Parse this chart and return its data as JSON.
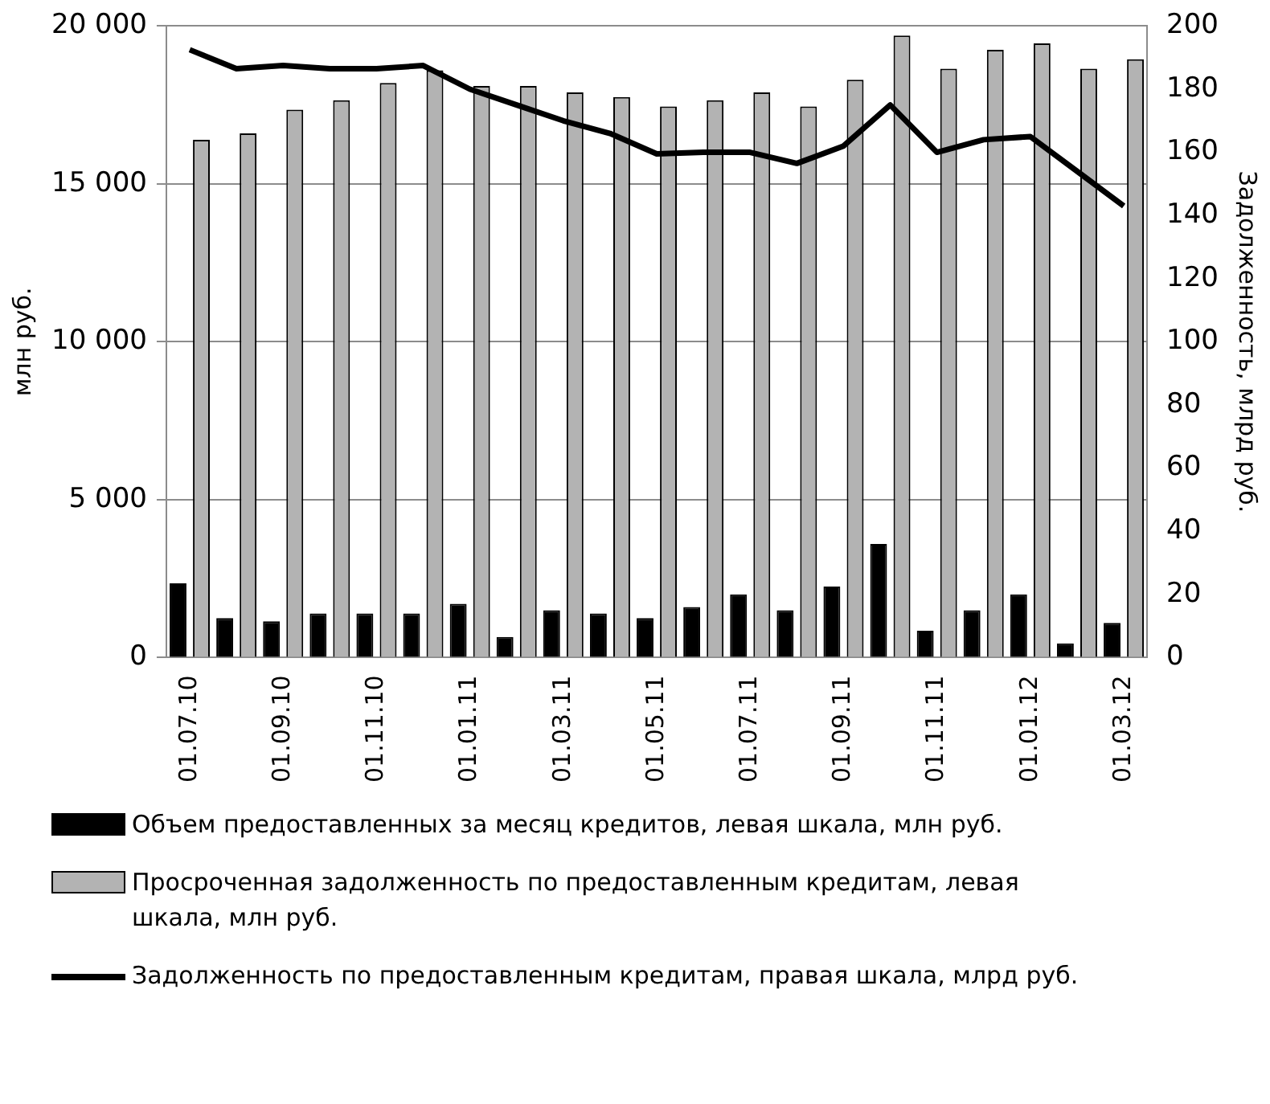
{
  "chart_data": {
    "type": "bar",
    "ylabel": "млн руб.",
    "y2label": "Задолженность, млрд руб.",
    "categories": [
      "01.07.10",
      null,
      "01.09.10",
      null,
      "01.11.10",
      null,
      "01.01.11",
      null,
      "01.03.11",
      null,
      "01.05.11",
      null,
      "01.07.11",
      null,
      "01.09.11",
      null,
      "01.11.11",
      null,
      "01.01.12",
      null,
      "01.03.12"
    ],
    "series": [
      {
        "name": "Объем предоставленных за месяц кредитов, левая шкала, млн руб.",
        "color": "#000000",
        "values": [
          2350,
          1250,
          1150,
          1400,
          1400,
          1400,
          1700,
          650,
          1500,
          1400,
          1250,
          1600,
          2000,
          1500,
          2250,
          3600,
          850,
          1500,
          2000,
          450,
          1100
        ]
      },
      {
        "name": "Просроченная задолженность по предоставленным кредитам, левая шкала, млн руб.",
        "color": "#b3b3b3",
        "values": [
          16400,
          16600,
          17350,
          17650,
          18200,
          18600,
          18100,
          18100,
          17900,
          17750,
          17450,
          17650,
          17900,
          17450,
          18300,
          19700,
          18650,
          19250,
          19450,
          18650,
          18950
        ]
      },
      {
        "name": "Задолженность по предоставленным кредитам, правая шкала, млрд руб.",
        "type": "line",
        "axis": "y2",
        "color": "#000000",
        "values": [
          192.5,
          186.5,
          187.5,
          186.5,
          186.5,
          187.5,
          180,
          175,
          170,
          166,
          159.5,
          160,
          160,
          156.5,
          162,
          175,
          160,
          164,
          165,
          154,
          143
        ]
      }
    ],
    "ylim": [
      0,
      20000
    ],
    "yticks": [
      0,
      {
        "value": 5000,
        "label": "5 000"
      },
      {
        "value": 10000,
        "label": "10 000"
      },
      {
        "value": 15000,
        "label": "15 000"
      },
      {
        "value": 20000,
        "label": "20 000"
      }
    ],
    "y2lim": [
      0,
      200
    ],
    "y2ticks": [
      0,
      20,
      40,
      60,
      80,
      100,
      120,
      140,
      160,
      180,
      200
    ],
    "grid": "y",
    "legend": "bottom",
    "marker": "none",
    "line_style": "solid"
  }
}
